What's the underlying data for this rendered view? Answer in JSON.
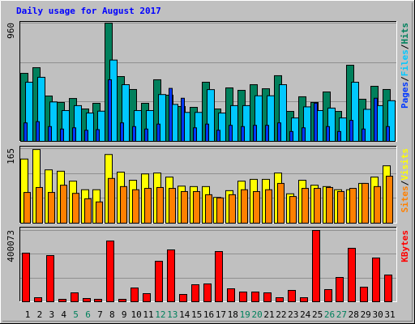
{
  "chart_data": [
    {
      "type": "bar",
      "title": "Daily usage for August 2017",
      "legend_separator": "/",
      "ylim": [
        0,
        960
      ],
      "yticks": [
        960
      ],
      "series": [
        {
          "name": "Hits",
          "color": "#00805c",
          "values": [
            552,
            598,
            368,
            316,
            348,
            263,
            309,
            960,
            526,
            421,
            309,
            500,
            375,
            283,
            276,
            480,
            263,
            434,
            414,
            460,
            427,
            533,
            243,
            362,
            316,
            401,
            243,
            618,
            342,
            447,
            421
          ]
        },
        {
          "name": "Files",
          "color": "#00c8ff",
          "values": [
            480,
            520,
            320,
            250,
            290,
            230,
            245,
            660,
            460,
            250,
            250,
            380,
            300,
            235,
            235,
            420,
            230,
            290,
            290,
            370,
            370,
            460,
            190,
            280,
            250,
            270,
            190,
            480,
            260,
            290,
            330
          ]
        },
        {
          "name": "Pages",
          "color": "#0038ff",
          "values": [
            150,
            160,
            120,
            100,
            110,
            90,
            95,
            500,
            150,
            120,
            100,
            140,
            430,
            350,
            110,
            140,
            90,
            130,
            120,
            130,
            130,
            150,
            80,
            110,
            310,
            120,
            80,
            170,
            100,
            350,
            120
          ]
        }
      ]
    },
    {
      "type": "bar",
      "legend_separator": "/",
      "ylim": [
        0,
        165
      ],
      "yticks": [
        165
      ],
      "series": [
        {
          "name": "Visits",
          "color": "#ffff00",
          "values": [
            142,
            163,
            118,
            115,
            93,
            74,
            74,
            152,
            113,
            95,
            109,
            111,
            102,
            82,
            81,
            81,
            57,
            72,
            93,
            97,
            97,
            111,
            65,
            95,
            84,
            81,
            74,
            74,
            88,
            102,
            127
          ]
        },
        {
          "name": "Sites",
          "color": "#ff8000",
          "values": [
            68,
            79,
            68,
            84,
            66,
            54,
            47,
            99,
            81,
            74,
            77,
            79,
            77,
            70,
            70,
            63,
            56,
            63,
            74,
            70,
            74,
            88,
            59,
            77,
            77,
            79,
            70,
            77,
            88,
            81,
            104
          ]
        }
      ]
    },
    {
      "type": "bar",
      "ylim": [
        0,
        400073
      ],
      "yticks": [
        400073
      ],
      "categories": [
        "1",
        "2",
        "3",
        "4",
        "5",
        "6",
        "7",
        "8",
        "9",
        "10",
        "11",
        "12",
        "13",
        "14",
        "15",
        "16",
        "17",
        "18",
        "19",
        "20",
        "21",
        "22",
        "23",
        "24",
        "25",
        "26",
        "27",
        "28",
        "29",
        "30",
        "31"
      ],
      "category_colors": [
        "#000000",
        "#000000",
        "#000000",
        "#000000",
        "#00805c",
        "#00805c",
        "#000000",
        "#000000",
        "#000000",
        "#000000",
        "#000000",
        "#00805c",
        "#00805c",
        "#000000",
        "#000000",
        "#000000",
        "#000000",
        "#000000",
        "#00805c",
        "#00805c",
        "#000000",
        "#000000",
        "#000000",
        "#000000",
        "#000000",
        "#00805c",
        "#00805c",
        "#000000",
        "#000000",
        "#000000",
        "#000000"
      ],
      "series": [
        {
          "name": "KBytes",
          "color": "#ff0000",
          "values": [
            272760,
            22730,
            259122,
            13638,
            50006,
            18184,
            13638,
            340950,
            13638,
            77282,
            45460,
            227300,
            290944,
            40914,
            95466,
            100012,
            281852,
            72736,
            54552,
            54552,
            50006,
            22730,
            63644,
            22730,
            400073,
            68190,
            136380,
            300036,
            81828,
            245484,
            150018
          ]
        }
      ]
    }
  ]
}
